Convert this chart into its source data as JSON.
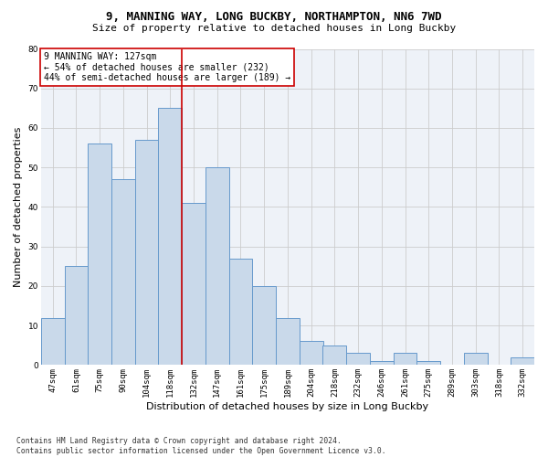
{
  "title1": "9, MANNING WAY, LONG BUCKBY, NORTHAMPTON, NN6 7WD",
  "title2": "Size of property relative to detached houses in Long Buckby",
  "xlabel": "Distribution of detached houses by size in Long Buckby",
  "ylabel": "Number of detached properties",
  "footnote": "Contains HM Land Registry data © Crown copyright and database right 2024.\nContains public sector information licensed under the Open Government Licence v3.0.",
  "annotation_line1": "9 MANNING WAY: 127sqm",
  "annotation_line2": "← 54% of detached houses are smaller (232)",
  "annotation_line3": "44% of semi-detached houses are larger (189) →",
  "property_size": 127,
  "bar_labels": [
    "47sqm",
    "61sqm",
    "75sqm",
    "90sqm",
    "104sqm",
    "118sqm",
    "132sqm",
    "147sqm",
    "161sqm",
    "175sqm",
    "189sqm",
    "204sqm",
    "218sqm",
    "232sqm",
    "246sqm",
    "261sqm",
    "275sqm",
    "289sqm",
    "303sqm",
    "318sqm",
    "332sqm"
  ],
  "bar_values": [
    12,
    25,
    56,
    47,
    57,
    65,
    41,
    50,
    27,
    20,
    12,
    6,
    5,
    3,
    1,
    3,
    1,
    0,
    3,
    0,
    2
  ],
  "bar_color": "#c9d9ea",
  "bar_edge_color": "#6699cc",
  "vline_color": "#cc0000",
  "vline_x_index": 6,
  "grid_color": "#cccccc",
  "bg_color": "#eef2f8",
  "annotation_box_color": "#cc0000",
  "title1_fontsize": 9,
  "title2_fontsize": 8,
  "ylabel_fontsize": 8,
  "xlabel_fontsize": 8,
  "tick_fontsize": 6.5,
  "annotation_fontsize": 7,
  "footnote_fontsize": 5.8,
  "ylim": [
    0,
    80
  ]
}
